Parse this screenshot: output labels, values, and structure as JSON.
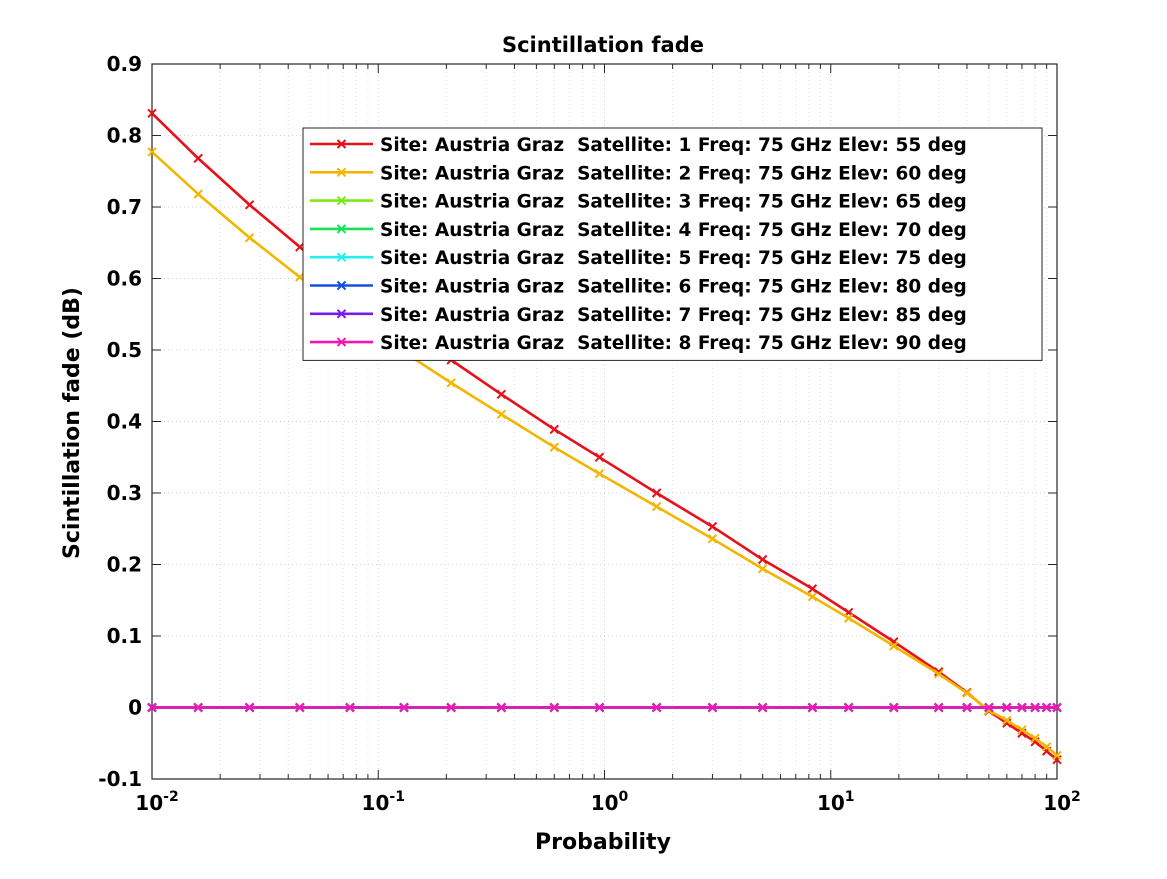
{
  "chart_data": {
    "type": "line",
    "title": "Scintillation fade",
    "xlabel": "Probability",
    "ylabel": "Scintillation fade (dB)",
    "x_scale": "log",
    "xlim": [
      0.01,
      100
    ],
    "ylim": [
      -0.1,
      0.9
    ],
    "x_ticks": [
      {
        "value": 0.01,
        "base": "10",
        "exp": "-2"
      },
      {
        "value": 0.1,
        "base": "10",
        "exp": "-1"
      },
      {
        "value": 1,
        "base": "10",
        "exp": "0"
      },
      {
        "value": 10,
        "base": "10",
        "exp": "1"
      },
      {
        "value": 100,
        "base": "10",
        "exp": "2"
      }
    ],
    "y_ticks": [
      "-0.1",
      "0",
      "0.1",
      "0.2",
      "0.3",
      "0.4",
      "0.5",
      "0.6",
      "0.7",
      "0.8",
      "0.9"
    ],
    "grid": true,
    "legend_position": "top-right",
    "x": [
      0.01,
      0.016,
      0.027,
      0.045,
      0.075,
      0.13,
      0.21,
      0.35,
      0.6,
      0.95,
      1.7,
      3,
      5,
      8.3,
      12,
      19,
      30,
      40,
      50,
      60,
      70,
      80,
      90,
      100
    ],
    "series": [
      {
        "name": "Site: Austria Graz  Satellite: 1 Freq: 75 GHz Elev: 55 deg",
        "color": "#e8101a",
        "values": [
          0.831,
          0.768,
          0.703,
          0.644,
          0.586,
          0.532,
          0.486,
          0.438,
          0.389,
          0.35,
          0.3,
          0.253,
          0.207,
          0.166,
          0.133,
          0.092,
          0.05,
          0.021,
          -0.005,
          -0.022,
          -0.036,
          -0.048,
          -0.061,
          -0.073
        ]
      },
      {
        "name": "Site: Austria Graz  Satellite: 2 Freq: 75 GHz Elev: 60 deg",
        "color": "#f2b600",
        "values": [
          0.777,
          0.718,
          0.657,
          0.602,
          0.549,
          0.497,
          0.454,
          0.41,
          0.364,
          0.327,
          0.281,
          0.236,
          0.194,
          0.155,
          0.125,
          0.086,
          0.047,
          0.02,
          -0.004,
          -0.018,
          -0.031,
          -0.043,
          -0.055,
          -0.067
        ]
      },
      {
        "name": "Site: Austria Graz  Satellite: 3 Freq: 75 GHz Elev: 65 deg",
        "color": "#7fe81a",
        "values": [
          0,
          0,
          0,
          0,
          0,
          0,
          0,
          0,
          0,
          0,
          0,
          0,
          0,
          0,
          0,
          0,
          0,
          0,
          0,
          0,
          0,
          0,
          0,
          0
        ]
      },
      {
        "name": "Site: Austria Graz  Satellite: 4 Freq: 75 GHz Elev: 70 deg",
        "color": "#18e05a",
        "values": [
          0,
          0,
          0,
          0,
          0,
          0,
          0,
          0,
          0,
          0,
          0,
          0,
          0,
          0,
          0,
          0,
          0,
          0,
          0,
          0,
          0,
          0,
          0,
          0
        ]
      },
      {
        "name": "Site: Austria Graz  Satellite: 5 Freq: 75 GHz Elev: 75 deg",
        "color": "#22f0f0",
        "values": [
          0,
          0,
          0,
          0,
          0,
          0,
          0,
          0,
          0,
          0,
          0,
          0,
          0,
          0,
          0,
          0,
          0,
          0,
          0,
          0,
          0,
          0,
          0,
          0
        ]
      },
      {
        "name": "Site: Austria Graz  Satellite: 6 Freq: 75 GHz Elev: 80 deg",
        "color": "#1450e0",
        "values": [
          0,
          0,
          0,
          0,
          0,
          0,
          0,
          0,
          0,
          0,
          0,
          0,
          0,
          0,
          0,
          0,
          0,
          0,
          0,
          0,
          0,
          0,
          0,
          0
        ]
      },
      {
        "name": "Site: Austria Graz  Satellite: 7 Freq: 75 GHz Elev: 85 deg",
        "color": "#7a1ae8",
        "values": [
          0,
          0,
          0,
          0,
          0,
          0,
          0,
          0,
          0,
          0,
          0,
          0,
          0,
          0,
          0,
          0,
          0,
          0,
          0,
          0,
          0,
          0,
          0,
          0
        ]
      },
      {
        "name": "Site: Austria Graz  Satellite: 8 Freq: 75 GHz Elev: 90 deg",
        "color": "#f018b0",
        "values": [
          0,
          0,
          0,
          0,
          0,
          0,
          0,
          0,
          0,
          0,
          0,
          0,
          0,
          0,
          0,
          0,
          0,
          0,
          0,
          0,
          0,
          0,
          0,
          0
        ]
      }
    ]
  }
}
